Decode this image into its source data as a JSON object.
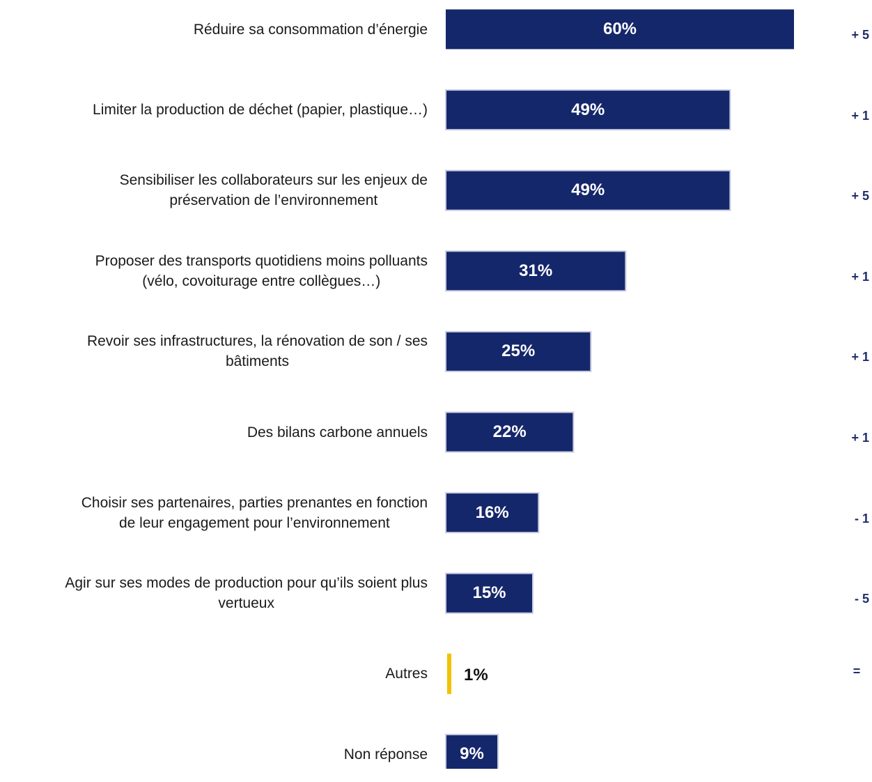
{
  "chart_data": {
    "type": "bar",
    "orientation": "horizontal",
    "unit": "%",
    "xlim": [
      0,
      60
    ],
    "grid": false,
    "legend": "none",
    "colors": {
      "bar": "#15276b",
      "bar_border": "#c9cce0",
      "highlight": "#f2c200",
      "change": "#1f2d6b"
    },
    "rows": [
      {
        "label": "Réduire sa consommation d’énergie",
        "value": 60,
        "value_label": "60%",
        "change": "+ 5",
        "color": "bar"
      },
      {
        "label": "Limiter la production de déchet (papier, plastique…)",
        "value": 49,
        "value_label": "49%",
        "change": "+ 1",
        "color": "bar"
      },
      {
        "label": "Sensibiliser les collaborateurs sur les enjeux de\npréservation de l’environnement",
        "value": 49,
        "value_label": "49%",
        "change": "+ 5",
        "color": "bar"
      },
      {
        "label": "Proposer des transports quotidiens moins polluants\n(vélo, covoiturage entre collègues…)",
        "value": 31,
        "value_label": "31%",
        "change": "+ 1",
        "color": "bar"
      },
      {
        "label": "Revoir ses infrastructures, la rénovation de son / ses\nbâtiments",
        "value": 25,
        "value_label": "25%",
        "change": "+ 1",
        "color": "bar"
      },
      {
        "label": "Des bilans carbone annuels",
        "value": 22,
        "value_label": "22%",
        "change": "+ 1",
        "color": "bar"
      },
      {
        "label": "Choisir ses partenaires, parties prenantes en fonction\nde leur engagement pour l’environnement",
        "value": 16,
        "value_label": "16%",
        "change": "- 1",
        "color": "bar"
      },
      {
        "label": "Agir sur ses modes de production pour qu’ils soient plus\nvertueux",
        "value": 15,
        "value_label": "15%",
        "change": "- 5",
        "color": "bar"
      },
      {
        "label": "Autres",
        "value": 1,
        "value_label": "1%",
        "change": "=",
        "color": "highlight"
      },
      {
        "label": "Non réponse",
        "value": 9,
        "value_label": "9%",
        "change": "",
        "color": "bar"
      }
    ]
  }
}
